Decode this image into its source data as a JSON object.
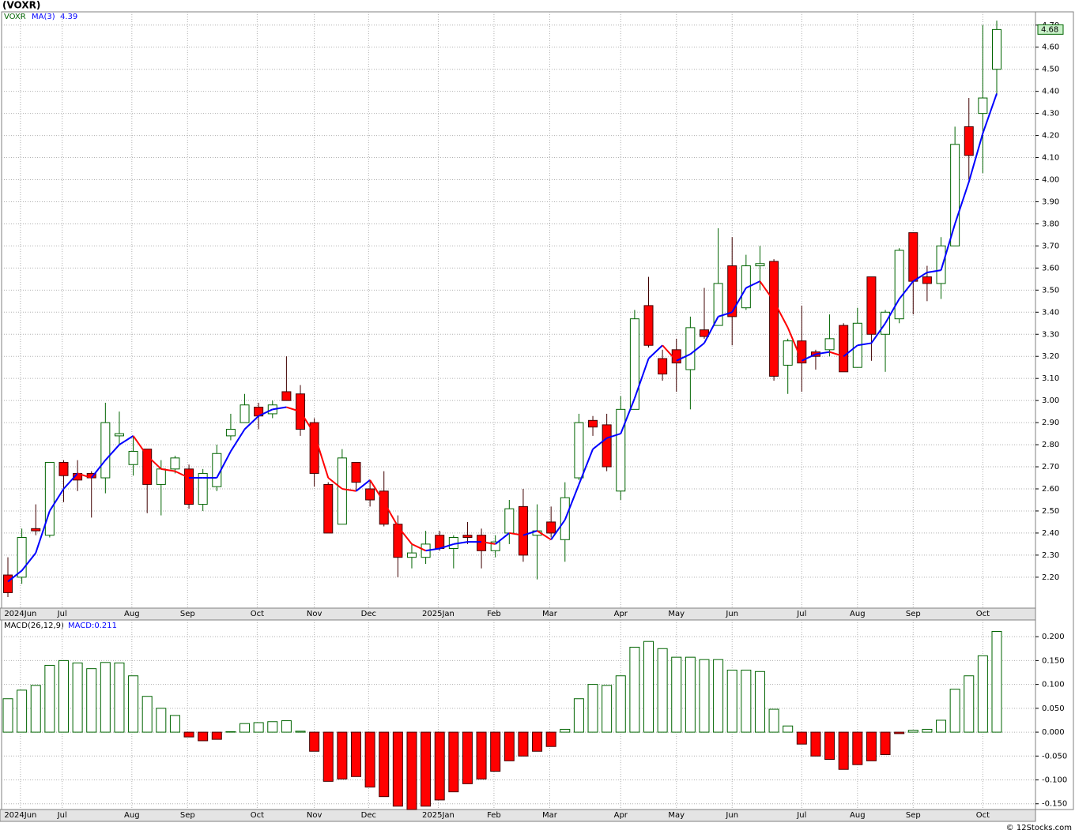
{
  "chart_data": [
    {
      "type": "candlestick",
      "title": "(VOXR)",
      "ylim": [
        2.06,
        4.76
      ],
      "yticks": [
        {
          "value": 2.2,
          "label": "2.20"
        },
        {
          "value": 2.3,
          "label": "2.30"
        },
        {
          "value": 2.4,
          "label": "2.40"
        },
        {
          "value": 2.5,
          "label": "2.50"
        },
        {
          "value": 2.6,
          "label": "2.60"
        },
        {
          "value": 2.7,
          "label": "2.70"
        },
        {
          "value": 2.8,
          "label": "2.80"
        },
        {
          "value": 2.9,
          "label": "2.90"
        },
        {
          "value": 3.0,
          "label": "3.00"
        },
        {
          "value": 3.1,
          "label": "3.10"
        },
        {
          "value": 3.2,
          "label": "3.20"
        },
        {
          "value": 3.3,
          "label": "3.30"
        },
        {
          "value": 3.4,
          "label": "3.40"
        },
        {
          "value": 3.5,
          "label": "3.50"
        },
        {
          "value": 3.6,
          "label": "3.60"
        },
        {
          "value": 3.7,
          "label": "3.70"
        },
        {
          "value": 3.8,
          "label": "3.80"
        },
        {
          "value": 3.9,
          "label": "3.90"
        },
        {
          "value": 4.0,
          "label": "4.00"
        },
        {
          "value": 4.1,
          "label": "4.10"
        },
        {
          "value": 4.2,
          "label": "4.20"
        },
        {
          "value": 4.3,
          "label": "4.30"
        },
        {
          "value": 4.4,
          "label": "4.40"
        },
        {
          "value": 4.5,
          "label": "4.50"
        },
        {
          "value": 4.6,
          "label": "4.60"
        },
        {
          "value": 4.7,
          "label": "4.70"
        }
      ],
      "xticks": [
        {
          "value": 0.9,
          "label": "2024Jun"
        },
        {
          "value": 3.9,
          "label": "Jul"
        },
        {
          "value": 8.9,
          "label": "Aug"
        },
        {
          "value": 12.9,
          "label": "Sep"
        },
        {
          "value": 17.9,
          "label": "Oct"
        },
        {
          "value": 22.0,
          "label": "Nov"
        },
        {
          "value": 25.9,
          "label": "Dec"
        },
        {
          "value": 30.9,
          "label": "2025Jan"
        },
        {
          "value": 34.9,
          "label": "Feb"
        },
        {
          "value": 38.9,
          "label": "Mar"
        },
        {
          "value": 44.0,
          "label": "Apr"
        },
        {
          "value": 48.0,
          "label": "May"
        },
        {
          "value": 52.0,
          "label": "Jun"
        },
        {
          "value": 57.0,
          "label": "Jul"
        },
        {
          "value": 61.0,
          "label": "Aug"
        },
        {
          "value": 65.0,
          "label": "Sep"
        },
        {
          "value": 70.0,
          "label": "Oct"
        }
      ],
      "grid": true,
      "series": [
        {
          "name": "VOXR",
          "color": "#006400",
          "down_color": "#ff0000",
          "open": [
            2.21,
            2.2,
            2.42,
            2.39,
            2.72,
            2.67,
            2.67,
            2.65,
            2.84,
            2.71,
            2.78,
            2.62,
            2.69,
            2.69,
            2.53,
            2.61,
            2.84,
            2.9,
            2.97,
            2.94,
            3.04,
            3.03,
            2.9,
            2.62,
            2.44,
            2.72,
            2.6,
            2.59,
            2.44,
            2.29,
            2.29,
            2.39,
            2.33,
            2.39,
            2.39,
            2.32,
            2.4,
            2.52,
            2.39,
            2.45,
            2.37,
            2.65,
            2.91,
            2.89,
            2.59,
            2.96,
            3.43,
            3.19,
            3.23,
            3.14,
            3.32,
            3.34,
            3.61,
            3.42,
            3.61,
            3.63,
            3.16,
            3.27,
            3.22,
            3.23,
            3.34,
            3.15,
            3.56,
            3.3,
            3.37,
            3.76,
            3.56,
            3.53,
            3.7,
            4.24,
            4.3,
            4.5
          ],
          "high": [
            2.29,
            2.42,
            2.53,
            2.72,
            2.73,
            2.73,
            2.68,
            2.99,
            2.95,
            2.84,
            2.78,
            2.73,
            2.75,
            2.71,
            2.69,
            2.8,
            2.94,
            3.03,
            2.99,
            3.0,
            3.2,
            3.07,
            2.92,
            2.63,
            2.78,
            2.72,
            2.64,
            2.68,
            2.48,
            2.35,
            2.41,
            2.41,
            2.39,
            2.45,
            2.42,
            2.39,
            2.55,
            2.6,
            2.53,
            2.52,
            2.63,
            2.94,
            2.93,
            2.94,
            3.02,
            3.41,
            3.56,
            3.23,
            3.28,
            3.38,
            3.51,
            3.78,
            3.74,
            3.66,
            3.7,
            3.64,
            3.28,
            3.43,
            3.23,
            3.39,
            3.35,
            3.42,
            3.56,
            3.41,
            3.69,
            3.76,
            3.61,
            3.74,
            4.24,
            4.37,
            4.7,
            4.72
          ],
          "low": [
            2.11,
            2.17,
            2.39,
            2.38,
            2.54,
            2.59,
            2.47,
            2.58,
            2.8,
            2.66,
            2.49,
            2.48,
            2.67,
            2.51,
            2.5,
            2.59,
            2.82,
            2.9,
            2.87,
            2.92,
            3.0,
            2.84,
            2.61,
            2.4,
            2.44,
            2.59,
            2.52,
            2.43,
            2.2,
            2.24,
            2.26,
            2.32,
            2.24,
            2.35,
            2.24,
            2.29,
            2.35,
            2.27,
            2.19,
            2.38,
            2.27,
            2.64,
            2.84,
            2.68,
            2.55,
            2.96,
            3.24,
            3.09,
            3.04,
            2.96,
            3.28,
            3.34,
            3.25,
            3.41,
            3.5,
            3.09,
            3.03,
            3.04,
            3.14,
            3.2,
            3.13,
            3.15,
            3.18,
            3.13,
            3.35,
            3.39,
            3.45,
            3.46,
            3.7,
            4.0,
            4.03,
            4.38
          ],
          "close": [
            2.13,
            2.38,
            2.41,
            2.72,
            2.66,
            2.64,
            2.65,
            2.9,
            2.85,
            2.77,
            2.62,
            2.69,
            2.74,
            2.53,
            2.67,
            2.76,
            2.87,
            2.98,
            2.93,
            2.98,
            3.0,
            2.87,
            2.67,
            2.4,
            2.74,
            2.63,
            2.55,
            2.44,
            2.29,
            2.31,
            2.35,
            2.33,
            2.38,
            2.38,
            2.32,
            2.36,
            2.51,
            2.3,
            2.41,
            2.4,
            2.56,
            2.9,
            2.88,
            2.7,
            2.96,
            3.37,
            3.25,
            3.12,
            3.17,
            3.33,
            3.29,
            3.53,
            3.38,
            3.61,
            3.62,
            3.11,
            3.27,
            3.17,
            3.2,
            3.28,
            3.13,
            3.35,
            3.3,
            3.4,
            3.68,
            3.54,
            3.53,
            3.7,
            4.16,
            4.11,
            4.37,
            4.68
          ]
        },
        {
          "name": "MA(3)",
          "color": "#0000ff",
          "down_color": "#ff0000",
          "values": [
            2.18,
            2.23,
            2.31,
            2.5,
            2.6,
            2.67,
            2.65,
            2.73,
            2.8,
            2.84,
            2.75,
            2.69,
            2.68,
            2.65,
            2.65,
            2.65,
            2.77,
            2.87,
            2.93,
            2.96,
            2.97,
            2.95,
            2.85,
            2.65,
            2.6,
            2.59,
            2.64,
            2.54,
            2.43,
            2.35,
            2.32,
            2.33,
            2.35,
            2.36,
            2.36,
            2.35,
            2.4,
            2.39,
            2.41,
            2.37,
            2.46,
            2.62,
            2.78,
            2.83,
            2.85,
            3.01,
            3.19,
            3.25,
            3.18,
            3.21,
            3.26,
            3.38,
            3.4,
            3.51,
            3.54,
            3.45,
            3.33,
            3.18,
            3.21,
            3.22,
            3.2,
            3.25,
            3.26,
            3.35,
            3.46,
            3.54,
            3.58,
            3.59,
            3.8,
            3.99,
            4.21,
            4.39
          ]
        }
      ]
    },
    {
      "type": "bar",
      "ylim": [
        -0.162,
        0.235
      ],
      "yticks": [
        {
          "value": -0.15,
          "label": "-0.150"
        },
        {
          "value": -0.1,
          "label": "-0.100"
        },
        {
          "value": -0.05,
          "label": "-0.050"
        },
        {
          "value": 0,
          "label": "0.000"
        },
        {
          "value": 0.05,
          "label": "0.050"
        },
        {
          "value": 0.1,
          "label": "0.100"
        },
        {
          "value": 0.15,
          "label": "0.150"
        },
        {
          "value": 0.2,
          "label": "0.200"
        }
      ],
      "grid": true,
      "series": [
        {
          "name": "MACD(26,12,9)",
          "last_value_label": "MACD:0.211",
          "color": "#006400",
          "down_color": "#ff0000",
          "values": [
            0.07,
            0.088,
            0.098,
            0.14,
            0.15,
            0.145,
            0.133,
            0.146,
            0.145,
            0.118,
            0.075,
            0.05,
            0.035,
            -0.01,
            -0.018,
            -0.015,
            0.001,
            0.018,
            0.02,
            0.022,
            0.024,
            0.002,
            -0.04,
            -0.103,
            -0.098,
            -0.093,
            -0.115,
            -0.135,
            -0.155,
            -0.162,
            -0.155,
            -0.142,
            -0.125,
            -0.108,
            -0.098,
            -0.082,
            -0.06,
            -0.05,
            -0.04,
            -0.03,
            0.006,
            0.07,
            0.1,
            0.098,
            0.118,
            0.178,
            0.19,
            0.175,
            0.157,
            0.157,
            0.152,
            0.152,
            0.13,
            0.13,
            0.127,
            0.048,
            0.013,
            -0.025,
            -0.05,
            -0.057,
            -0.078,
            -0.068,
            -0.06,
            -0.047,
            -0.003,
            0.004,
            0.006,
            0.025,
            0.09,
            0.118,
            0.16,
            0.211
          ]
        }
      ]
    }
  ],
  "footer": "© 12Stocks.com"
}
